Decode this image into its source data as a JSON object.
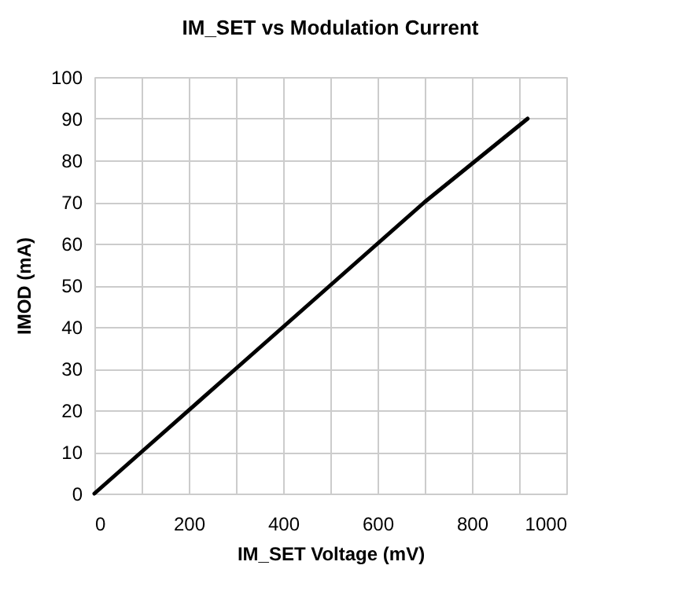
{
  "chart_data": {
    "type": "line",
    "title": "IM_SET vs Modulation Current",
    "xlabel": "IM_SET Voltage (mV)",
    "ylabel": "IMOD (mA)",
    "x": [
      0,
      100,
      300,
      500,
      700,
      918
    ],
    "series": [
      {
        "color": "#000000",
        "values": [
          0,
          10,
          30,
          50,
          70,
          90
        ]
      }
    ],
    "xlim": [
      0,
      1000
    ],
    "ylim": [
      0,
      100
    ],
    "xticks": [
      0,
      {
        "value": 100,
        "label": null
      },
      200,
      {
        "value": 300,
        "label": null
      },
      400,
      {
        "value": 500,
        "label": null
      },
      600,
      {
        "value": 700,
        "label": null
      },
      800,
      {
        "value": 900,
        "label": null
      },
      1000
    ],
    "yticks": [
      0,
      10,
      20,
      30,
      40,
      50,
      60,
      70,
      80,
      90,
      100
    ],
    "grid": true,
    "marker": "none",
    "line_style": "solid"
  }
}
